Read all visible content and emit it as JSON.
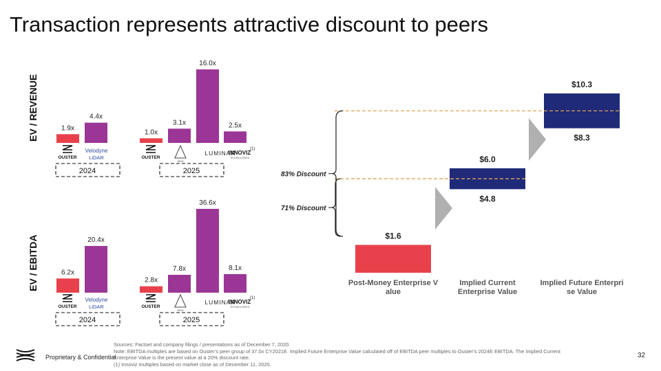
{
  "title": "Transaction represents attractive discount to peers",
  "charts": {
    "revenue_label": "EV / REVENUE",
    "ebitda_label": "EV / EBITDA",
    "year_groups": [
      "2024",
      "2025"
    ],
    "companies": [
      {
        "name": "OUSTER"
      },
      {
        "name": "Velodyne",
        "sub": "LiDAR"
      },
      {
        "name": "OUSTER"
      },
      {
        "name": "AEVA"
      },
      {
        "name": "LUMINAR"
      },
      {
        "name": "INNOVIZ",
        "sub": "TECHNOLOGIES",
        "note": "(1)"
      }
    ]
  },
  "waterfall": {
    "discount_83": "83% Discount",
    "discount_71": "71% Discount"
  },
  "footer": {
    "label": "Proprietary & Confidential",
    "page": "32",
    "notes": [
      "Sources: Factset and company filings / presentations as of December 7, 2020.",
      "Note: EBITDA multiples are based on Ouster’s peer group of 37.0x CY2021E. Implied Future Enterprise Value calculated off of EBITDA peer multiples to Ouster’s 2024E EBITDA. The Implied Current",
      "Enterprise Value is the present value at a 20% discount rate.",
      "(1) Innoviz multiples based on market close as of December 11, 2020."
    ]
  },
  "colors": {
    "ouster": "#e8414b",
    "peer": "#9b3696",
    "navy": "#1f2a78",
    "arrow": "#b0b0b0",
    "dash": "#e0a35a"
  },
  "chart_data": [
    {
      "type": "bar",
      "title": "EV / REVENUE",
      "categories": [
        "Ouster 2024",
        "Velodyne 2024",
        "Ouster 2025",
        "Aeva 2025",
        "Luminar 2025",
        "Innoviz 2025"
      ],
      "values": [
        1.9,
        4.4,
        1.0,
        3.1,
        16.0,
        2.5
      ],
      "labels": [
        "1.9x",
        "4.4x",
        "1.0x",
        "3.1x",
        "16.0x",
        "2.5x"
      ]
    },
    {
      "type": "bar",
      "title": "EV / EBITDA",
      "categories": [
        "Ouster 2024",
        "Velodyne 2024",
        "Ouster 2025",
        "Aeva 2025",
        "Luminar 2025",
        "Innoviz 2025"
      ],
      "values": [
        6.2,
        20.4,
        2.8,
        7.8,
        36.6,
        8.1
      ],
      "labels": [
        "6.2x",
        "20.4x",
        "2.8x",
        "7.8x",
        "36.6x",
        "8.1x"
      ]
    },
    {
      "type": "bar",
      "subtype": "floating",
      "categories": [
        "Post-Money Enterprise Value",
        "Implied Current Enterprise Value",
        "Implied Future Enterprise Value"
      ],
      "low": [
        0,
        4.8,
        8.3
      ],
      "high": [
        1.6,
        6.0,
        10.3
      ],
      "high_labels": [
        "$1.6",
        "$6.0",
        "$10.3"
      ],
      "low_labels": [
        "",
        "$4.8",
        "$8.3"
      ]
    }
  ]
}
